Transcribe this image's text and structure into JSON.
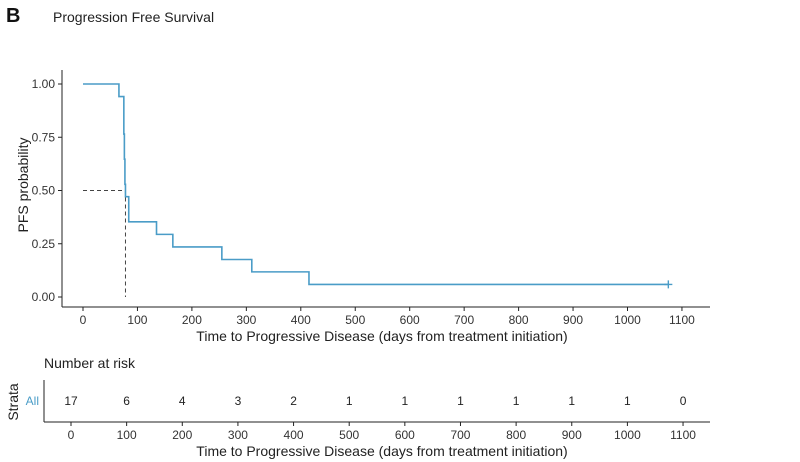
{
  "panel_label": "B",
  "chart_data": [
    {
      "type": "line",
      "subtype": "kaplan-meier",
      "title": "Progression Free Survival",
      "xlabel": "Time to Progressive Disease (days from treatment initiation)",
      "ylabel": "PFS probability",
      "xlim": [
        -20,
        1130
      ],
      "ylim": [
        0,
        1.05
      ],
      "xticks": [
        0,
        100,
        200,
        300,
        400,
        500,
        600,
        700,
        800,
        900,
        1000,
        1100
      ],
      "yticks": [
        0,
        0.25,
        0.5,
        0.75,
        1.0
      ],
      "ytick_labels": [
        "0.00",
        "0.25",
        "0.50",
        "0.75",
        "1.00"
      ],
      "grid": false,
      "series": [
        {
          "name": "All",
          "color": "#4a9cc7",
          "steps": [
            {
              "t": 0,
              "s": 1.0
            },
            {
              "t": 66,
              "s": 0.941
            },
            {
              "t": 75,
              "s": 0.765
            },
            {
              "t": 76,
              "s": 0.647
            },
            {
              "t": 77,
              "s": 0.529
            },
            {
              "t": 78,
              "s": 0.471
            },
            {
              "t": 84,
              "s": 0.353
            },
            {
              "t": 135,
              "s": 0.294
            },
            {
              "t": 165,
              "s": 0.235
            },
            {
              "t": 255,
              "s": 0.176
            },
            {
              "t": 310,
              "s": 0.118
            },
            {
              "t": 415,
              "s": 0.059
            }
          ],
          "end_time": 1075,
          "censored": [
            {
              "t": 1075,
              "s": 0.059
            }
          ]
        }
      ],
      "median": {
        "t": 78,
        "s": 0.5,
        "line_color": "#444444"
      }
    },
    {
      "type": "table",
      "title": "Number at risk",
      "xlabel": "Time to Progressive Disease (days from treatment initiation)",
      "ylabel": "Strata",
      "strata": "All",
      "strata_color": "#4a9cc7",
      "times": [
        0,
        100,
        200,
        300,
        400,
        500,
        600,
        700,
        800,
        900,
        1000,
        1100
      ],
      "values": [
        17,
        6,
        4,
        3,
        2,
        1,
        1,
        1,
        1,
        1,
        1,
        0
      ]
    }
  ]
}
